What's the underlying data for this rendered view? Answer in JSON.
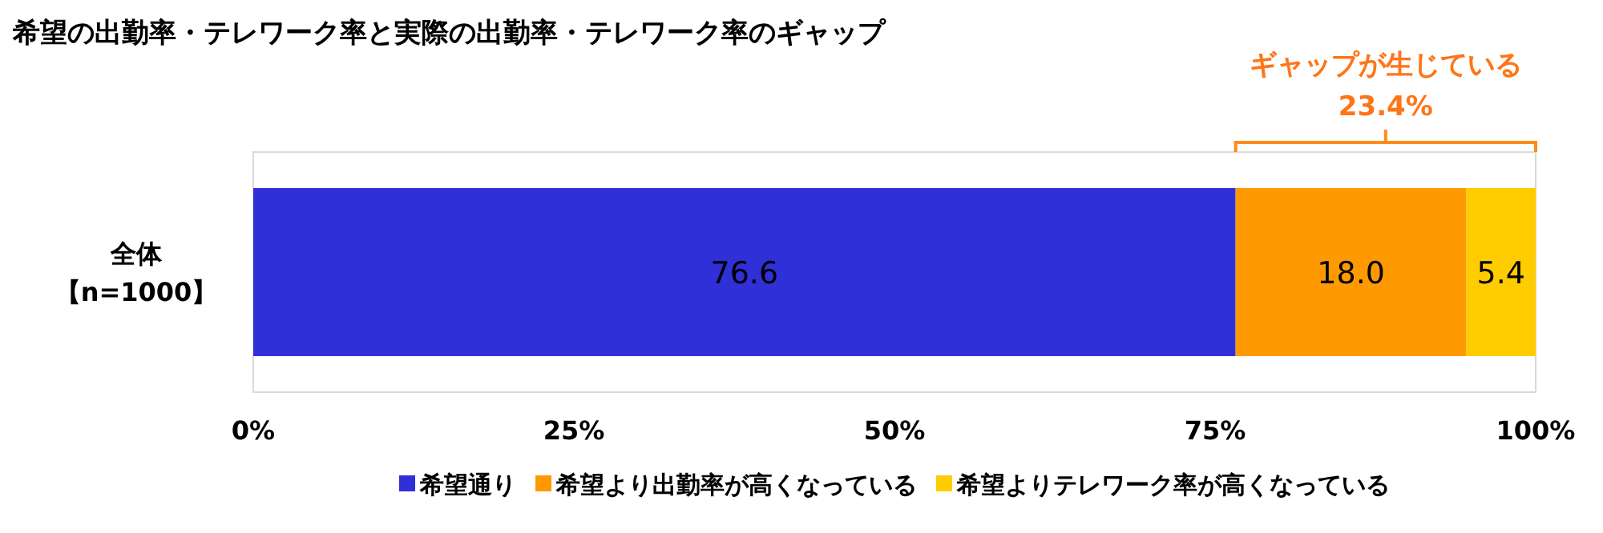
{
  "chart_data": {
    "type": "bar",
    "orientation": "horizontal",
    "stacked": true,
    "title": "希望の出勤率・テレワーク率と実際の出勤率・テレワーク率のギャップ",
    "categories": [
      "全体【n=1000】"
    ],
    "series": [
      {
        "name": "希望通り",
        "color": "#3030d8",
        "values": [
          76.6
        ],
        "value_labels": [
          "76.6"
        ]
      },
      {
        "name": "希望より出勤率が高くなっている",
        "color": "#ff9900",
        "values": [
          18.0
        ],
        "value_labels": [
          "18.0"
        ]
      },
      {
        "name": "希望よりテレワーク率が高くなっている",
        "color": "#ffcc00",
        "values": [
          5.4
        ],
        "value_labels": [
          "5.4"
        ]
      }
    ],
    "xlim": [
      0,
      100
    ],
    "xticks": [
      {
        "value": 0,
        "label": "0%"
      },
      {
        "value": 25,
        "label": "25%"
      },
      {
        "value": 50,
        "label": "50%"
      },
      {
        "value": 75,
        "label": "75%"
      },
      {
        "value": 100,
        "label": "100%"
      }
    ],
    "legend": "bottom",
    "annotations": [
      "ギャップが生じている",
      "23.4%"
    ]
  }
}
